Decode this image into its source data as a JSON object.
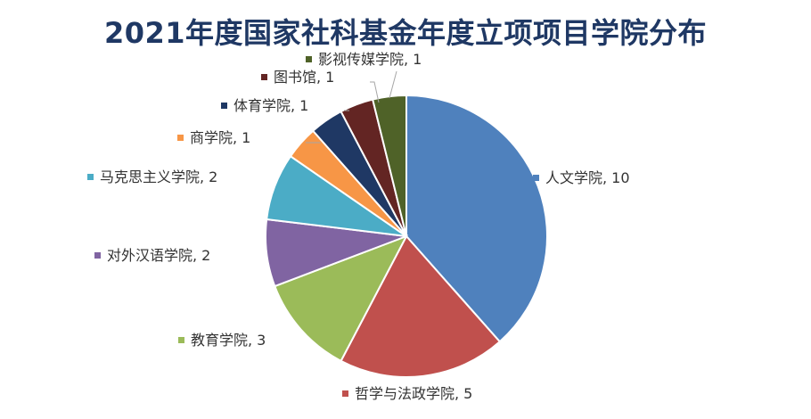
{
  "chart_data": {
    "type": "pie",
    "title": "2021年度国家社科基金年度立项项目学院分布",
    "categories": [
      "人文学院",
      "哲学与法政学院",
      "教育学院",
      "对外汉语学院",
      "马克思主义学院",
      "商学院",
      "体育学院",
      "图书馆",
      "影视传媒学院"
    ],
    "values": [
      10,
      5,
      3,
      2,
      2,
      1,
      1,
      1,
      1
    ],
    "labels": [
      "人文学院, 10",
      "哲学与法政学院, 5",
      "教育学院, 3",
      "对外汉语学院, 2",
      "马克思主义学院, 2",
      "商学院, 1",
      "体育学院, 1",
      "图书馆, 1",
      "影视传媒学院, 1"
    ],
    "colors": [
      "#4f81bd",
      "#c0504d",
      "#9bbb59",
      "#8064a2",
      "#4bacc6",
      "#f79646",
      "#1f3864",
      "#632523",
      "#4f6228"
    ],
    "start": "12 o'clock",
    "direction": "clockwise",
    "legend": "none"
  }
}
